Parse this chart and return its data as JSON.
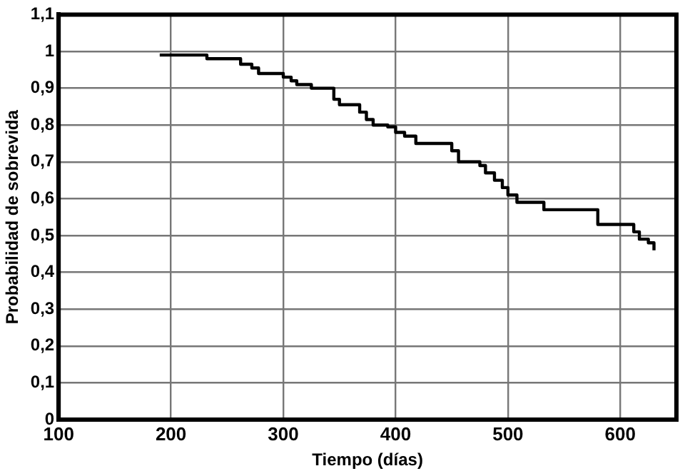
{
  "chart_data": {
    "type": "step",
    "xlabel": "Tiempo (días)",
    "ylabel": "Probabilidad de sobrevida",
    "x": [
      190,
      232,
      262,
      272,
      278,
      300,
      307,
      312,
      325,
      345,
      350,
      368,
      374,
      380,
      393,
      400,
      408,
      418,
      450,
      456,
      475,
      480,
      488,
      495,
      500,
      508,
      532,
      580,
      612,
      617,
      625,
      630
    ],
    "series": [
      {
        "color": "#000000",
        "values": [
          0.99,
          0.98,
          0.965,
          0.955,
          0.94,
          0.93,
          0.92,
          0.91,
          0.9,
          0.87,
          0.855,
          0.835,
          0.815,
          0.8,
          0.795,
          0.78,
          0.77,
          0.75,
          0.73,
          0.7,
          0.69,
          0.67,
          0.65,
          0.63,
          0.61,
          0.59,
          0.57,
          0.53,
          0.51,
          0.49,
          0.48,
          0.46
        ]
      }
    ],
    "xlim": [
      100,
      650
    ],
    "xticks": [
      100,
      200,
      300,
      400,
      500,
      600
    ],
    "ylim": [
      0,
      1.1
    ],
    "yticks": [
      {
        "value": 0,
        "label": "0"
      },
      {
        "value": 0.1,
        "label": "0,1"
      },
      {
        "value": 0.2,
        "label": "0,2"
      },
      {
        "value": 0.3,
        "label": "0,3"
      },
      {
        "value": 0.4,
        "label": "0,4"
      },
      {
        "value": 0.5,
        "label": "0,5"
      },
      {
        "value": 0.6,
        "label": "0,6"
      },
      {
        "value": 0.7,
        "label": "0,7"
      },
      {
        "value": 0.8,
        "label": "0,8"
      },
      {
        "value": 0.9,
        "label": "0,9"
      },
      {
        "value": 1,
        "label": "1"
      },
      {
        "value": 1.1,
        "label": "1,1"
      }
    ],
    "grid": true,
    "legend": false,
    "marker": "none",
    "line_style": "solid"
  }
}
